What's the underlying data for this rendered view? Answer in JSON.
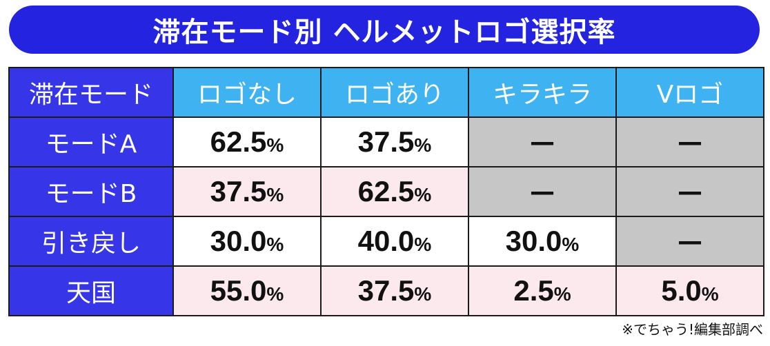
{
  "title": "滞在モード別 ヘルメットロゴ選択率",
  "table": {
    "corner_header": "滞在モード",
    "columns": [
      "ロゴなし",
      "ロゴあり",
      "キラキラ",
      "Vロゴ"
    ],
    "rows": [
      {
        "label": "モードA",
        "cells": [
          {
            "value": "62.5",
            "unit": "%",
            "shade": "white"
          },
          {
            "value": "37.5",
            "unit": "%",
            "shade": "white"
          },
          {
            "value": "—",
            "unit": "",
            "shade": "gray"
          },
          {
            "value": "—",
            "unit": "",
            "shade": "gray"
          }
        ]
      },
      {
        "label": "モードB",
        "cells": [
          {
            "value": "37.5",
            "unit": "%",
            "shade": "pink"
          },
          {
            "value": "62.5",
            "unit": "%",
            "shade": "pink"
          },
          {
            "value": "—",
            "unit": "",
            "shade": "gray"
          },
          {
            "value": "—",
            "unit": "",
            "shade": "gray"
          }
        ]
      },
      {
        "label": "引き戻し",
        "cells": [
          {
            "value": "30.0",
            "unit": "%",
            "shade": "white"
          },
          {
            "value": "40.0",
            "unit": "%",
            "shade": "white"
          },
          {
            "value": "30.0",
            "unit": "%",
            "shade": "white"
          },
          {
            "value": "—",
            "unit": "",
            "shade": "gray"
          }
        ]
      },
      {
        "label": "天国",
        "cells": [
          {
            "value": "55.0",
            "unit": "%",
            "shade": "pink"
          },
          {
            "value": "37.5",
            "unit": "%",
            "shade": "pink"
          },
          {
            "value": "2.5",
            "unit": "%",
            "shade": "pink"
          },
          {
            "value": "5.0",
            "unit": "%",
            "shade": "pink"
          }
        ]
      }
    ]
  },
  "footnote": "※でちゃう!編集部調べ",
  "colors": {
    "title_bg": "#2424e0",
    "row_header_bg": "#3636e8",
    "col_header_bg": "#3fb3f2",
    "cell_white": "#ffffff",
    "cell_pink": "#fbe9ee",
    "cell_gray": "#c6c6c6"
  }
}
